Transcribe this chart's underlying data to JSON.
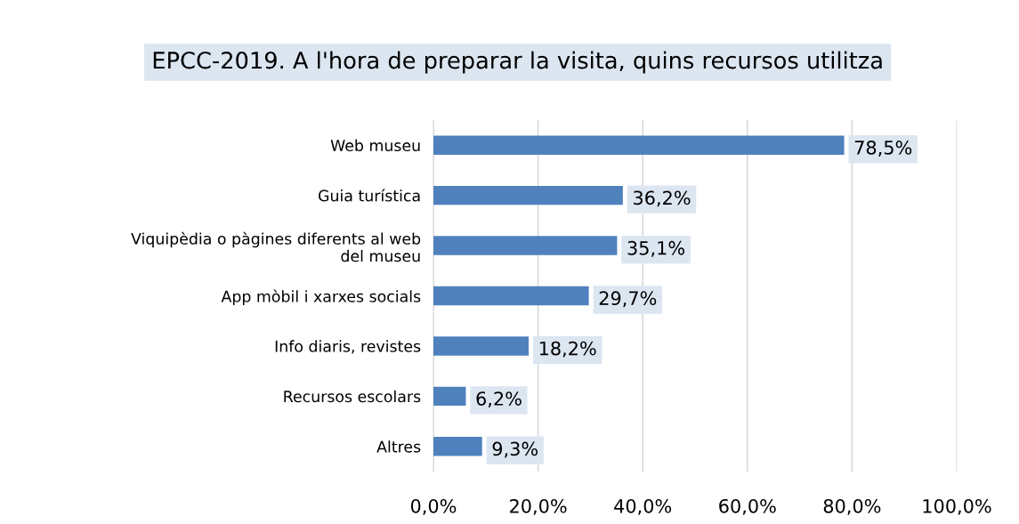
{
  "chart_data": {
    "type": "bar",
    "orientation": "horizontal",
    "title": "EPCC-2019. A l'hora de preparar la visita, quins recursos utilitza",
    "categories": [
      "Web museu",
      "Guia turística",
      "Viquipèdia o pàgines diferents al web del museu",
      "App mòbil i xarxes socials",
      "Info diaris, revistes",
      "Recursos escolars",
      "Altres"
    ],
    "values": [
      78.5,
      36.2,
      35.1,
      29.7,
      18.2,
      6.2,
      9.3
    ],
    "value_labels": [
      "78,5%",
      "36,2%",
      "35,1%",
      "29,7%",
      "18,2%",
      "6,2%",
      "9,3%"
    ],
    "color": "#4f81bd",
    "xlim": [
      0,
      100
    ],
    "xticks": [
      {
        "value": 0,
        "label": "0,0%"
      },
      {
        "value": 20,
        "label": "20,0%"
      },
      {
        "value": 40,
        "label": "40,0%"
      },
      {
        "value": 60,
        "label": "60,0%"
      },
      {
        "value": 80,
        "label": "80,0%"
      },
      {
        "value": 100,
        "label": "100,0%"
      }
    ],
    "grid": "x"
  }
}
